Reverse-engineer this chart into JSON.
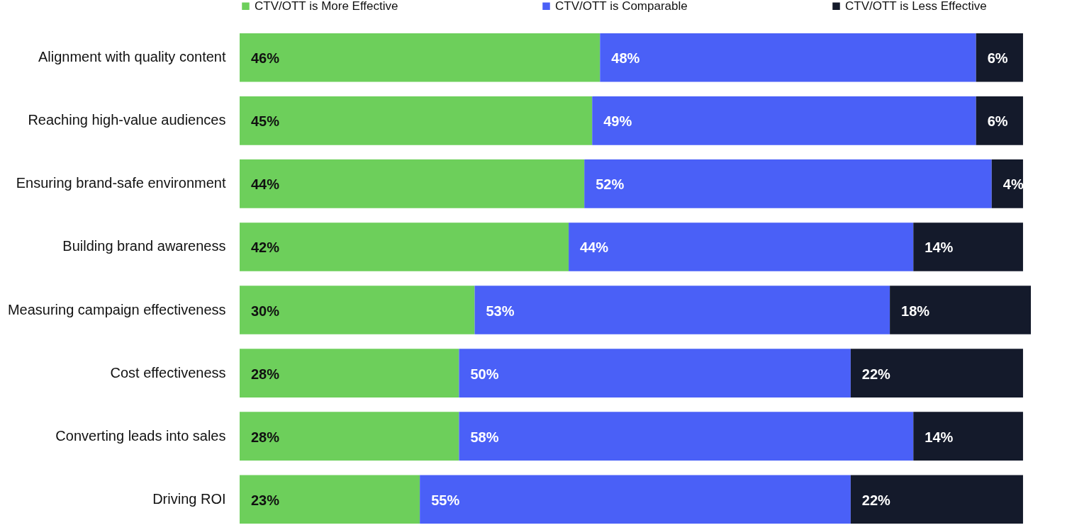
{
  "chart_data": {
    "type": "bar",
    "orientation": "horizontal",
    "stacked": true,
    "legend": "top",
    "tick_labels": "y",
    "categories": [
      "Alignment with quality content",
      "Reaching high-value audiences",
      "Ensuring brand-safe environment",
      "Building brand awareness",
      "Measuring campaign effectiveness",
      "Cost effectiveness",
      "Converting leads into sales",
      "Driving ROI"
    ],
    "series": [
      {
        "name": "CTV/OTT is More Effective",
        "color": "#6dcf5b",
        "values": [
          46,
          45,
          44,
          42,
          30,
          28,
          28,
          23
        ],
        "value_labels": [
          "46%",
          "45%",
          "44%",
          "42%",
          "30%",
          "28%",
          "28%",
          "23%"
        ]
      },
      {
        "name": "CTV/OTT is Comparable",
        "color": "#4a60f7",
        "values": [
          48,
          49,
          52,
          44,
          53,
          50,
          58,
          55
        ],
        "value_labels": [
          "48%",
          "49%",
          "52%",
          "44%",
          "53%",
          "50%",
          "58%",
          "55%"
        ]
      },
      {
        "name": "CTV/OTT is Less Effective",
        "color": "#141a2b",
        "values": [
          6,
          6,
          4,
          14,
          18,
          22,
          14,
          22
        ],
        "value_labels": [
          "6%",
          "6%",
          "4%",
          "14%",
          "18%",
          "22%",
          "14%",
          "22%"
        ]
      }
    ]
  }
}
